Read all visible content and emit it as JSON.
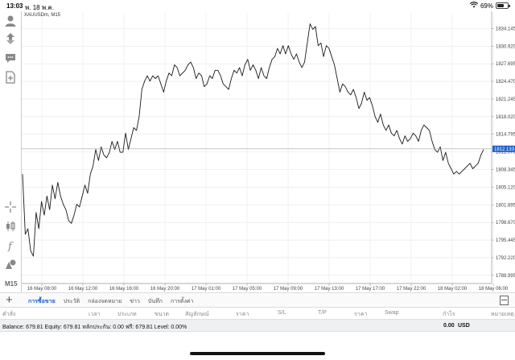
{
  "status_bar": {
    "time": "13:03",
    "date": "พ. 18 พ.ค.",
    "battery_label": "69%",
    "battery_level": 0.69,
    "icons": [
      "wifi-icon",
      "battery-icon"
    ]
  },
  "toolbar": {
    "top_icons": [
      "account-icon",
      "trade-icon",
      "chat-icon",
      "news-icon"
    ],
    "bottom_icons": [
      "crosshair-icon",
      "candles-icon",
      "indicator-icon",
      "objects-icon"
    ],
    "timeframe": "M15"
  },
  "chart": {
    "symbol_label": "XAUUSDm, M15",
    "current_price_label": "1812.133",
    "current_price": 1812.133,
    "line_color": "#1a1a1a",
    "price_tag_color": "#1f5fc9",
    "grid_color": "#e6e6e6"
  },
  "chart_data": {
    "type": "line",
    "x_tick_labels": [
      "16 May 08:00",
      "16 May 12:00",
      "16 May 16:00",
      "16 May 20:00",
      "17 May 01:00",
      "17 May 05:00",
      "17 May 09:00",
      "17 May 13:00",
      "17 May 17:00",
      "17 May 22:00",
      "18 May 02:00",
      "18 May 06:00"
    ],
    "y_tick_labels": [
      "1834.145",
      "1830.920",
      "1827.695",
      "1824.470",
      "1821.245",
      "1818.020",
      "1814.795",
      "1811.570",
      "1808.345",
      "1805.120",
      "1801.895",
      "1798.670",
      "1795.445",
      "1792.220",
      "1788.995"
    ],
    "y_ticks": [
      1834.145,
      1830.92,
      1827.695,
      1824.47,
      1821.245,
      1818.02,
      1814.795,
      1811.57,
      1808.345,
      1805.12,
      1801.895,
      1798.67,
      1795.445,
      1792.22,
      1788.995
    ],
    "ylim": [
      1787.5,
      1837.0
    ],
    "grid": true,
    "series": [
      {
        "values": [
          1807.5,
          1796.5,
          1797.5,
          1793.5,
          1792.5,
          1800.5,
          1797.5,
          1802.5,
          1800.0,
          1803.5,
          1801.0,
          1805.5,
          1803.0,
          1806.0,
          1803.5,
          1802.0,
          1801.0,
          1799.0,
          1798.5,
          1800.0,
          1802.0,
          1801.5,
          1803.5,
          1805.5,
          1804.0,
          1807.5,
          1809.0,
          1812.0,
          1810.0,
          1812.5,
          1811.0,
          1810.5,
          1811.5,
          1813.5,
          1812.0,
          1813.5,
          1811.5,
          1811.5,
          1815.0,
          1812.0,
          1814.0,
          1816.0,
          1815.5,
          1818.0,
          1823.0,
          1824.5,
          1825.5,
          1824.5,
          1825.5,
          1825.0,
          1825.5,
          1824.0,
          1822.5,
          1824.5,
          1826.0,
          1825.5,
          1827.5,
          1827.0,
          1825.5,
          1826.0,
          1826.5,
          1827.5,
          1828.0,
          1827.0,
          1825.0,
          1826.0,
          1825.5,
          1823.5,
          1824.0,
          1825.5,
          1825.0,
          1826.5,
          1826.5,
          1825.5,
          1824.0,
          1823.5,
          1823.0,
          1825.0,
          1826.5,
          1826.0,
          1827.0,
          1825.5,
          1827.5,
          1828.5,
          1826.5,
          1827.5,
          1826.5,
          1825.0,
          1827.0,
          1825.5,
          1825.0,
          1827.0,
          1828.5,
          1829.0,
          1830.5,
          1829.5,
          1831.0,
          1829.5,
          1831.0,
          1829.5,
          1828.5,
          1829.5,
          1828.0,
          1827.0,
          1828.0,
          1831.5,
          1835.0,
          1834.0,
          1834.5,
          1831.0,
          1831.5,
          1829.0,
          1831.0,
          1830.5,
          1829.0,
          1827.5,
          1825.0,
          1822.5,
          1824.0,
          1823.5,
          1822.5,
          1822.0,
          1823.0,
          1821.5,
          1819.5,
          1820.5,
          1822.5,
          1821.0,
          1821.5,
          1820.0,
          1818.0,
          1817.0,
          1818.5,
          1816.5,
          1815.5,
          1816.5,
          1815.0,
          1814.5,
          1815.5,
          1814.0,
          1813.0,
          1814.5,
          1813.5,
          1814.0,
          1815.0,
          1814.5,
          1813.5,
          1815.5,
          1816.5,
          1816.0,
          1815.5,
          1813.5,
          1812.0,
          1811.5,
          1812.5,
          1810.0,
          1811.5,
          1809.5,
          1808.5,
          1807.5,
          1808.0,
          1807.5,
          1808.0,
          1808.5,
          1809.0,
          1809.5,
          1808.5,
          1809.0,
          1809.5,
          1811.0,
          1812.0
        ]
      }
    ]
  },
  "tabs": {
    "add_label": "+",
    "items": [
      "การซื้อขาย",
      "ประวัติ",
      "กล่องจดหมาย",
      "ข่าว",
      "บันทึก",
      "การตั้งค่า"
    ],
    "active_index": 0
  },
  "columns": [
    "คำสั่ง",
    "เวลา",
    "ประเภท",
    "ขนาด",
    "สัญลักษณ์",
    "ราคา",
    "S/L",
    "T/P",
    "ราคา",
    "Swap",
    "กำไร",
    "หมายเหตุ"
  ],
  "account": {
    "summary": "Balance: 679.81  Equity: 679.81  หลักประกัน: 0.00  ฟรี: 679.81  Level: 0.00%",
    "profit": "0.00",
    "currency": "USD"
  }
}
